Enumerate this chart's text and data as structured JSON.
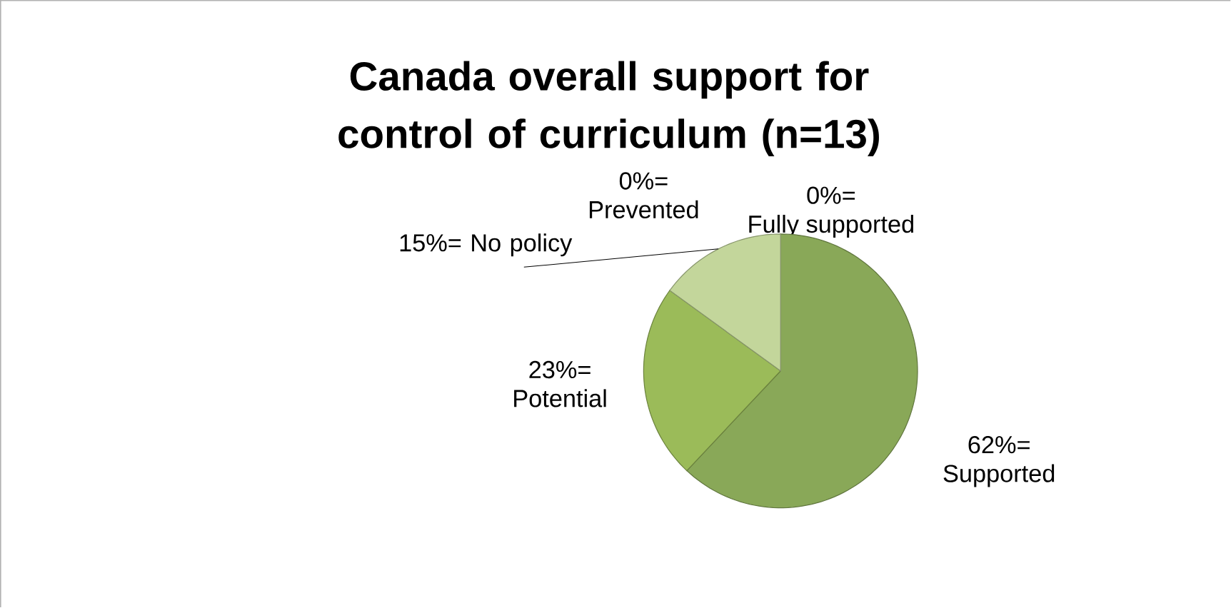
{
  "chart_data": {
    "type": "pie",
    "title": "Canada overall support for control of curriculum (n=13)",
    "categories": [
      "Fully supported",
      "Supported",
      "Potential",
      "No policy",
      "Prevented"
    ],
    "values": [
      0,
      62,
      23,
      15,
      0
    ],
    "value_labels": [
      "0%=",
      "62%=",
      "23%=",
      "15%=",
      "0%="
    ],
    "colors": [
      "#77933c",
      "#89a858",
      "#9bbb59",
      "#c3d69b",
      "#d7e4bd"
    ],
    "legend": false
  }
}
